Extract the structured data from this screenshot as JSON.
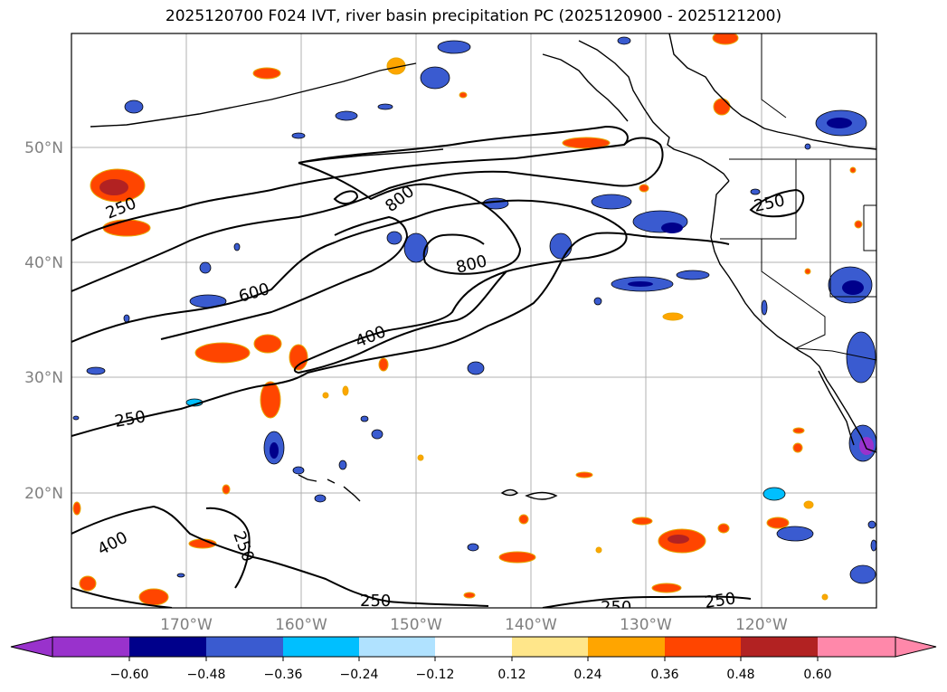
{
  "title": "2025120700 F024 IVT, river basin precipitation PC (2025120900 - 2025121200)",
  "map": {
    "lat_labels": [
      "50°N",
      "40°N",
      "30°N",
      "20°N"
    ],
    "lon_labels": [
      "170°W",
      "160°W",
      "150°W",
      "140°W",
      "130°W",
      "120°W"
    ],
    "contour_labels": [
      "250",
      "800",
      "250",
      "600",
      "800",
      "400",
      "250",
      "400",
      "250",
      "250",
      "250",
      "250"
    ]
  },
  "colorbar": {
    "ticks": [
      "−0.60",
      "−0.48",
      "−0.36",
      "−0.24",
      "−0.12",
      "0.12",
      "0.24",
      "0.36",
      "0.48",
      "0.60"
    ],
    "colors": [
      "#9932cc",
      "#00008b",
      "#3a5bd0",
      "#00bfff",
      "#b0e2ff",
      "#ffffff",
      "#ffe68a",
      "#ffa500",
      "#ff4500",
      "#b22222",
      "#ff88aa"
    ]
  },
  "palette": {
    "blue_light": "#b0e2ff",
    "blue_mid": "#00bfff",
    "blue_dark": "#3a5bd0",
    "navy": "#00008b",
    "yellow": "#ffe68a",
    "orange": "#ffa500",
    "red_orange": "#ff4500",
    "dark_red": "#b22222",
    "purple": "#9932cc"
  }
}
